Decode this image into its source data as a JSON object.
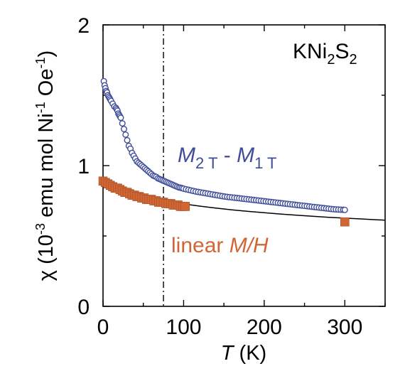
{
  "chart_data": {
    "type": "scatter",
    "xlabel": {
      "symbol": "T",
      "unit": " (K)"
    },
    "ylabel": {
      "prefix": "χ (10",
      "exp1": "-3",
      "mid": " emu mol Ni",
      "exp2": "-1",
      "mid2": " Oe",
      "exp3": "-1",
      "suffix": ")"
    },
    "xlim": [
      0,
      350
    ],
    "ylim": [
      0,
      2
    ],
    "xticks": [
      0,
      100,
      200,
      300
    ],
    "yticks": [
      0,
      1,
      2
    ],
    "xtick_labels": [
      "0",
      "100",
      "200",
      "300"
    ],
    "ytick_labels": [
      "0",
      "1",
      "2"
    ],
    "vline_x": 75,
    "annotations": {
      "compound": {
        "a": "KNi",
        "b": "2",
        "c": "S",
        "d": "2"
      },
      "series1_label": {
        "a": "M",
        "b": "2 T",
        "c": " - ",
        "d": "M",
        "e": "1 T"
      },
      "series2_label": {
        "a": "linear ",
        "b": "M/H"
      }
    },
    "colors": {
      "series1": "#3f4d99",
      "series2": "#cf6633",
      "fit": "#000000",
      "axes": "#000000"
    },
    "series": [
      {
        "marker": "open-circle",
        "x": [
          1,
          2,
          3,
          4,
          5,
          6,
          7,
          8,
          9,
          10,
          12,
          14,
          16,
          17,
          18,
          19,
          20,
          21,
          22,
          24,
          26,
          28,
          30,
          32,
          34,
          36,
          38,
          40,
          42,
          44,
          46,
          48,
          50,
          52,
          54,
          56,
          58,
          60,
          62,
          64,
          66,
          68,
          70,
          72,
          74,
          76,
          78,
          80,
          82,
          84,
          86,
          88,
          90,
          92,
          94,
          96,
          98,
          100,
          103,
          106,
          109,
          112,
          115,
          118,
          121,
          124,
          127,
          130,
          133,
          136,
          139,
          142,
          145,
          148,
          151,
          154,
          157,
          160,
          163,
          166,
          169,
          172,
          175,
          178,
          181,
          184,
          187,
          190,
          193,
          196,
          199,
          202,
          205,
          208,
          211,
          214,
          217,
          220,
          223,
          226,
          229,
          232,
          235,
          238,
          241,
          244,
          247,
          250,
          253,
          256,
          259,
          262,
          265,
          268,
          271,
          274,
          277,
          280,
          283,
          286,
          289,
          292,
          295,
          298,
          300
        ],
        "y": [
          1.6,
          1.57,
          1.55,
          1.53,
          1.52,
          1.5,
          1.49,
          1.48,
          1.47,
          1.46,
          1.44,
          1.42,
          1.41,
          1.4,
          1.39,
          1.37,
          1.36,
          1.35,
          1.34,
          1.3,
          1.26,
          1.22,
          1.18,
          1.14,
          1.12,
          1.09,
          1.07,
          1.05,
          1.03,
          1.02,
          1.01,
          1.0,
          0.99,
          0.98,
          0.97,
          0.96,
          0.95,
          0.94,
          0.93,
          0.925,
          0.92,
          0.91,
          0.905,
          0.9,
          0.895,
          0.89,
          0.885,
          0.88,
          0.875,
          0.87,
          0.865,
          0.86,
          0.855,
          0.85,
          0.845,
          0.843,
          0.84,
          0.836,
          0.832,
          0.828,
          0.824,
          0.82,
          0.816,
          0.813,
          0.81,
          0.807,
          0.804,
          0.801,
          0.798,
          0.795,
          0.792,
          0.789,
          0.786,
          0.783,
          0.78,
          0.778,
          0.776,
          0.774,
          0.772,
          0.77,
          0.768,
          0.766,
          0.764,
          0.762,
          0.76,
          0.758,
          0.756,
          0.754,
          0.752,
          0.75,
          0.748,
          0.746,
          0.744,
          0.742,
          0.74,
          0.738,
          0.736,
          0.734,
          0.732,
          0.73,
          0.728,
          0.726,
          0.724,
          0.722,
          0.72,
          0.718,
          0.716,
          0.714,
          0.712,
          0.71,
          0.708,
          0.706,
          0.704,
          0.702,
          0.7,
          0.698,
          0.696,
          0.694,
          0.692,
          0.69,
          0.689,
          0.688,
          0.687,
          0.686,
          0.685
        ]
      },
      {
        "marker": "filled-square",
        "x": [
          0,
          3,
          6,
          9,
          12,
          15,
          18,
          21,
          24,
          27,
          30,
          33,
          36,
          39,
          42,
          45,
          48,
          51,
          54,
          57,
          60,
          63,
          66,
          69,
          72,
          75,
          78,
          81,
          84,
          87,
          90,
          93,
          96,
          99,
          102,
          300
        ],
        "y": [
          0.89,
          0.88,
          0.87,
          0.86,
          0.85,
          0.84,
          0.84,
          0.83,
          0.82,
          0.81,
          0.81,
          0.8,
          0.79,
          0.79,
          0.78,
          0.78,
          0.77,
          0.77,
          0.76,
          0.76,
          0.76,
          0.75,
          0.75,
          0.74,
          0.74,
          0.74,
          0.73,
          0.73,
          0.73,
          0.72,
          0.72,
          0.72,
          0.71,
          0.71,
          0.71,
          0.6
        ]
      }
    ],
    "fit_curve": {
      "x": [
        0,
        10,
        20,
        30,
        40,
        50,
        60,
        70,
        80,
        90,
        100,
        120,
        140,
        160,
        180,
        200,
        220,
        240,
        260,
        280,
        300,
        320,
        340,
        350
      ],
      "y": [
        0.87,
        0.85,
        0.83,
        0.812,
        0.797,
        0.782,
        0.77,
        0.758,
        0.747,
        0.737,
        0.728,
        0.712,
        0.698,
        0.686,
        0.675,
        0.665,
        0.656,
        0.648,
        0.64,
        0.633,
        0.627,
        0.621,
        0.615,
        0.612
      ]
    }
  }
}
